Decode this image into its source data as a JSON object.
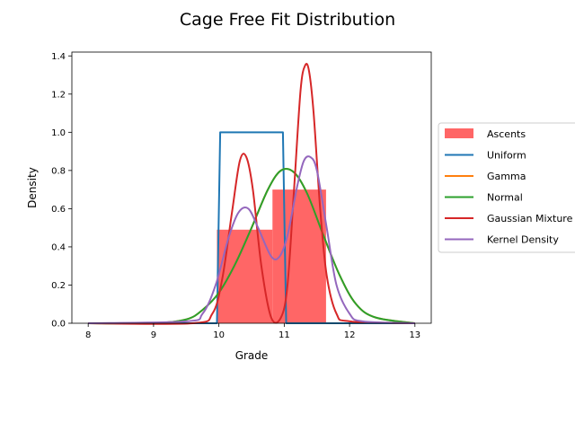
{
  "chart_data": {
    "type": "line",
    "title": "Cage Free Fit Distribution",
    "xlabel": "Grade",
    "ylabel": "Density",
    "xlim": [
      7.75,
      13.25
    ],
    "ylim": [
      0,
      1.42
    ],
    "xticks": [
      8,
      9,
      10,
      11,
      12,
      13
    ],
    "yticks": [
      0.0,
      0.2,
      0.4,
      0.6,
      0.8,
      1.0,
      1.2,
      1.4
    ],
    "grid": false,
    "legend_placement": "right-outside",
    "histogram": {
      "name": "Ascents",
      "color": "#ff6666",
      "bins": [
        {
          "x0": 9.97,
          "x1": 10.82,
          "height": 0.49
        },
        {
          "x0": 10.82,
          "x1": 11.64,
          "height": 0.7
        }
      ]
    },
    "series": [
      {
        "name": "Uniform",
        "color": "#1f77b4",
        "x": [
          8.0,
          9.97,
          10.02,
          10.98,
          11.03,
          13.0
        ],
        "y": [
          0.0,
          0.0,
          1.0,
          1.0,
          0.0,
          0.0
        ]
      },
      {
        "name": "Gamma",
        "color": "#ff7f0e",
        "x": [
          8.0,
          9.0,
          9.5,
          9.75,
          10.0,
          10.25,
          10.5,
          10.75,
          10.95,
          11.15,
          11.35,
          11.6,
          11.85,
          12.1,
          12.4,
          13.0
        ],
        "y": [
          0.0,
          0.0,
          0.02,
          0.07,
          0.16,
          0.31,
          0.5,
          0.7,
          0.8,
          0.79,
          0.68,
          0.46,
          0.25,
          0.1,
          0.03,
          0.0
        ]
      },
      {
        "name": "Normal",
        "color": "#2ca02c",
        "x": [
          8.0,
          9.0,
          9.5,
          9.75,
          10.0,
          10.25,
          10.5,
          10.75,
          10.95,
          11.15,
          11.35,
          11.6,
          11.85,
          12.1,
          12.4,
          13.0
        ],
        "y": [
          0.0,
          0.0,
          0.02,
          0.07,
          0.16,
          0.31,
          0.5,
          0.7,
          0.8,
          0.79,
          0.68,
          0.46,
          0.25,
          0.1,
          0.03,
          0.0
        ]
      },
      {
        "name": "Gaussian Mixture",
        "color": "#d62728",
        "x": [
          8.0,
          9.6,
          9.9,
          10.05,
          10.2,
          10.32,
          10.42,
          10.52,
          10.65,
          10.8,
          10.95,
          11.05,
          11.15,
          11.25,
          11.32,
          11.38,
          11.45,
          11.55,
          11.65,
          11.8,
          12.0,
          13.0
        ],
        "y": [
          0.0,
          0.0,
          0.05,
          0.23,
          0.58,
          0.85,
          0.87,
          0.7,
          0.3,
          0.03,
          0.03,
          0.2,
          0.7,
          1.22,
          1.35,
          1.32,
          1.1,
          0.6,
          0.25,
          0.05,
          0.01,
          0.0
        ]
      },
      {
        "name": "Kernel Density",
        "color": "#9467bd",
        "x": [
          8.0,
          9.5,
          9.75,
          9.95,
          10.15,
          10.3,
          10.45,
          10.6,
          10.8,
          10.93,
          11.05,
          11.2,
          11.3,
          11.4,
          11.5,
          11.65,
          11.8,
          12.0,
          12.2,
          13.0
        ],
        "y": [
          0.0,
          0.01,
          0.05,
          0.2,
          0.45,
          0.58,
          0.6,
          0.5,
          0.35,
          0.35,
          0.46,
          0.72,
          0.85,
          0.87,
          0.8,
          0.5,
          0.2,
          0.05,
          0.01,
          0.0
        ]
      }
    ]
  }
}
